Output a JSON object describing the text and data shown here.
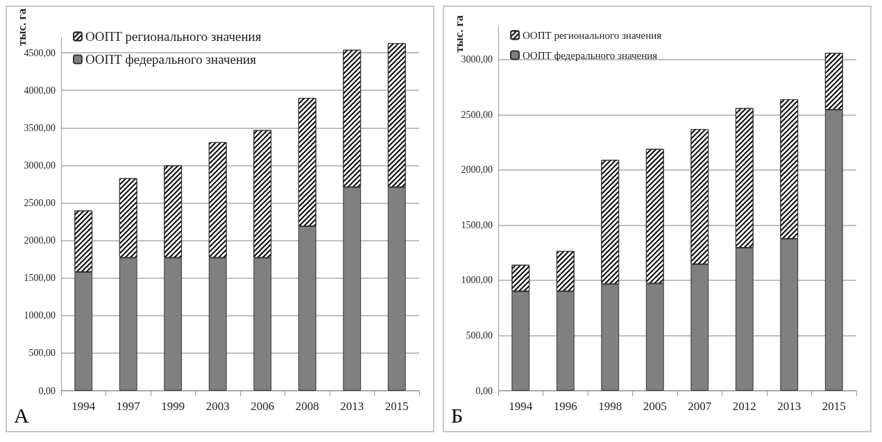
{
  "chart_data": [
    {
      "type": "bar",
      "stacked": true,
      "ylabel": "тыс. га",
      "annotations": [
        "А"
      ],
      "categories": [
        "1994",
        "1997",
        "1999",
        "2003",
        "2006",
        "2008",
        "2013",
        "2015"
      ],
      "series": [
        {
          "name": "ООПТ федерального значения",
          "color": "#808080",
          "values": [
            1580,
            1770,
            1770,
            1770,
            1770,
            2190,
            2710,
            2710
          ]
        },
        {
          "name": "ООПТ регионального значения",
          "color": "#ffffff",
          "values": [
            820,
            1060,
            1230,
            1540,
            1700,
            1710,
            1830,
            1920
          ]
        }
      ],
      "ylim": [
        0,
        4700
      ],
      "yticks": [
        {
          "value": 0,
          "label": "0,00"
        },
        {
          "value": 500,
          "label": "500,00"
        },
        {
          "value": 1000,
          "label": "1000,00"
        },
        {
          "value": 1500,
          "label": "1500,00"
        },
        {
          "value": 2000,
          "label": "2000,00"
        },
        {
          "value": 2500,
          "label": "2500,00"
        },
        {
          "value": 3000,
          "label": "3000,00"
        },
        {
          "value": 3500,
          "label": "3500,00"
        },
        {
          "value": 4000,
          "label": "4000,00"
        },
        {
          "value": 4500,
          "label": "4500,00"
        }
      ],
      "grid": "y",
      "legend": "top left"
    },
    {
      "type": "bar",
      "stacked": true,
      "ylabel": "тыс. га",
      "annotations": [
        "Б"
      ],
      "categories": [
        "1994",
        "1996",
        "1998",
        "2005",
        "2007",
        "2012",
        "2013",
        "2015"
      ],
      "series": [
        {
          "name": "ООПТ федерального значения",
          "color": "#808080",
          "values": [
            900,
            900,
            965,
            970,
            1145,
            1295,
            1375,
            2545
          ]
        },
        {
          "name": "ООПТ регионального значения",
          "color": "#ffffff",
          "values": [
            240,
            365,
            1125,
            1220,
            1225,
            1265,
            1265,
            515
          ]
        }
      ],
      "ylim": [
        0,
        3300
      ],
      "yticks": [
        {
          "value": 0,
          "label": "0,00"
        },
        {
          "value": 500,
          "label": "500,00"
        },
        {
          "value": 1000,
          "label": "1000,00"
        },
        {
          "value": 1500,
          "label": "1500,00"
        },
        {
          "value": 2000,
          "label": "2000,00"
        },
        {
          "value": 2500,
          "label": "2500,00"
        },
        {
          "value": 3000,
          "label": "3000,00"
        }
      ],
      "grid": "y",
      "legend": "top left"
    }
  ]
}
